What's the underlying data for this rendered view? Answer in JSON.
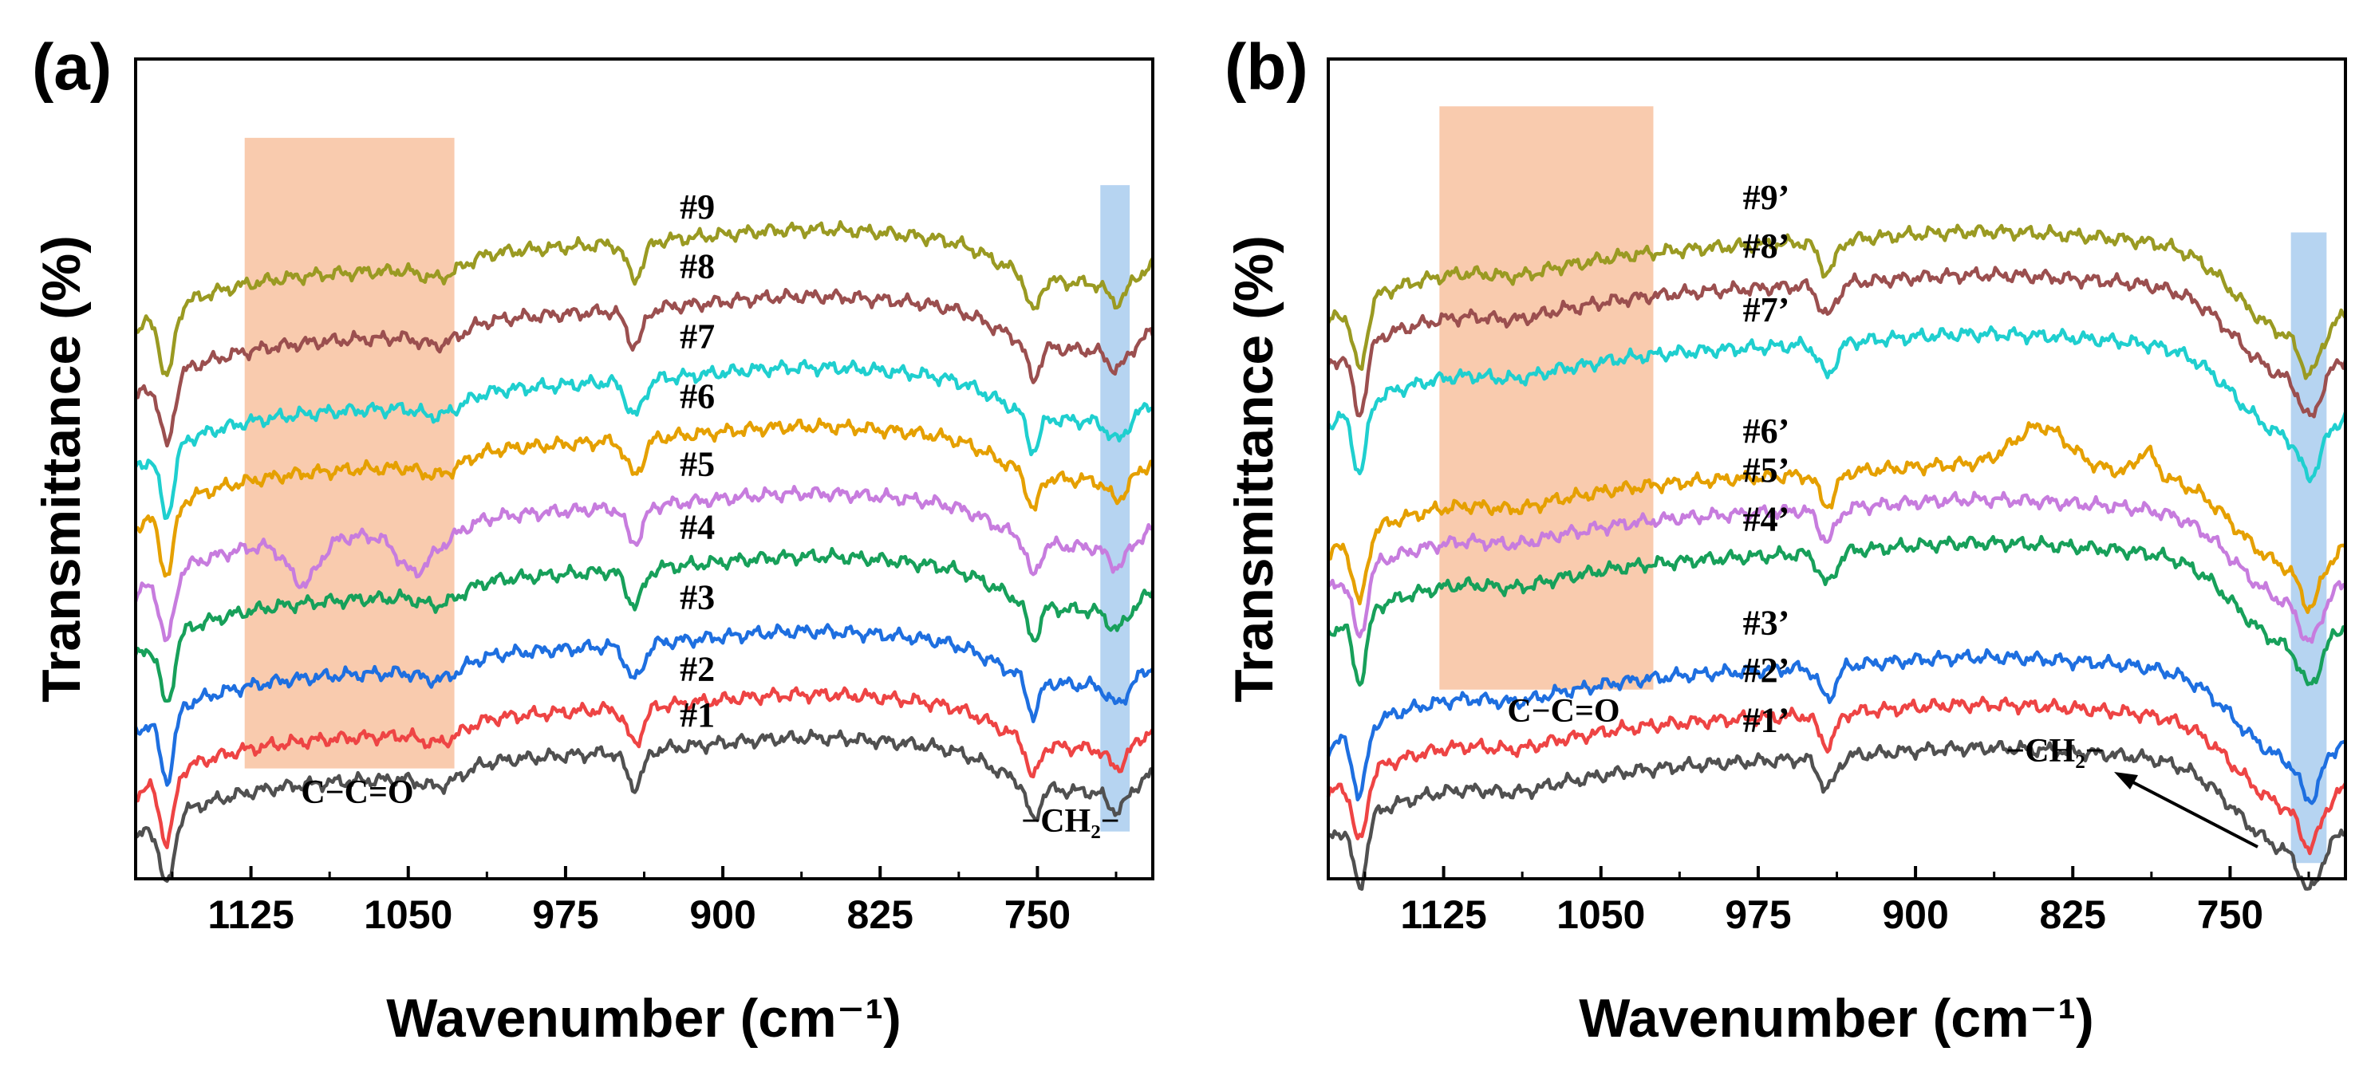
{
  "chart_data": [
    {
      "panel": "(a)",
      "type": "line",
      "xlabel": "Wavenumber (cm⁻¹)",
      "ylabel": "Transmittance (%)",
      "xlim": [
        1180,
        695
      ],
      "ylim": [
        -0.4,
        10.0
      ],
      "xticks": [
        1125,
        1050,
        975,
        900,
        825,
        750
      ],
      "yticks_shown": false,
      "bands": [
        {
          "x": [
            1128,
            1028
          ],
          "color": "#f8c2a0",
          "label": "C−C=O"
        },
        {
          "x": [
            720,
            706
          ],
          "color": "#a9cdee",
          "label": "−CH₂−"
        }
      ],
      "series": [
        {
          "name": "#1",
          "color": "#505050",
          "offset": 0.0
        },
        {
          "name": "#2",
          "color": "#ee4444",
          "offset": 0.55
        },
        {
          "name": "#3",
          "color": "#1e6fe0",
          "offset": 1.35
        },
        {
          "name": "#4",
          "color": "#17a05a",
          "offset": 2.3
        },
        {
          "name": "#5",
          "color": "#c77cde",
          "offset": 3.1
        },
        {
          "name": "#6",
          "color": "#e5a000",
          "offset": 3.95
        },
        {
          "name": "#7",
          "color": "#1fcfcf",
          "offset": 4.7
        },
        {
          "name": "#8",
          "color": "#9b4f4f",
          "offset": 5.6
        },
        {
          "name": "#9",
          "color": "#9a9a22",
          "offset": 6.45
        }
      ]
    },
    {
      "panel": "(b)",
      "type": "line",
      "xlabel": "Wavenumber (cm⁻¹)",
      "ylabel": "Transmittance (%)",
      "xlim": [
        1180,
        695
      ],
      "ylim": [
        -0.4,
        10.0
      ],
      "xticks": [
        1125,
        1050,
        975,
        900,
        825,
        750
      ],
      "yticks_shown": false,
      "bands": [
        {
          "x": [
            1127,
            1025
          ],
          "color": "#f8c2a0",
          "label": "C−C=O"
        },
        {
          "x": [
            721,
            704
          ],
          "color": "#a9cdee",
          "label": "−CH₂−"
        }
      ],
      "series": [
        {
          "name": "#1’",
          "color": "#505050",
          "offset": 0.0
        },
        {
          "name": "#2’",
          "color": "#ee4444",
          "offset": 0.55
        },
        {
          "name": "#3’",
          "color": "#1e6fe0",
          "offset": 1.15
        },
        {
          "name": "#4’",
          "color": "#17a05a",
          "offset": 2.6
        },
        {
          "name": "#5’",
          "color": "#c77cde",
          "offset": 3.15
        },
        {
          "name": "#6’",
          "color": "#e5a000",
          "offset": 3.6
        },
        {
          "name": "#7’",
          "color": "#1fcfcf",
          "offset": 5.25
        },
        {
          "name": "#8’",
          "color": "#9b4f4f",
          "offset": 6.0
        },
        {
          "name": "#9’",
          "color": "#9a9a22",
          "offset": 6.55
        }
      ]
    }
  ]
}
